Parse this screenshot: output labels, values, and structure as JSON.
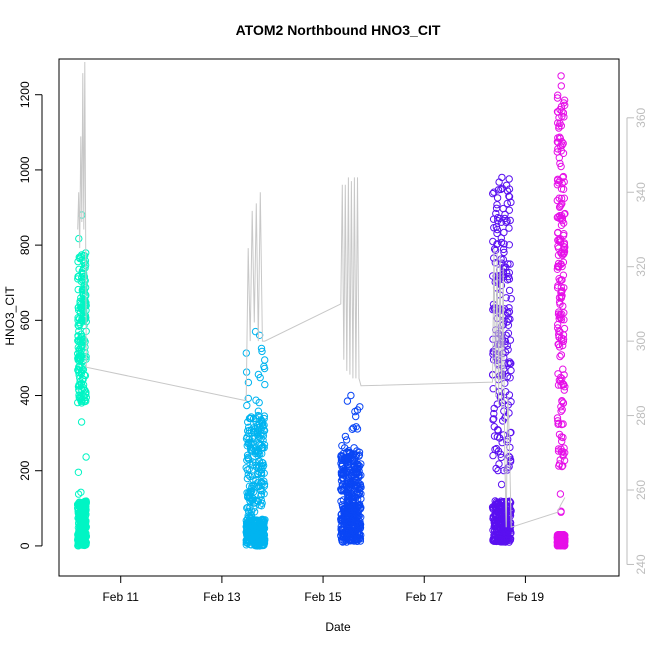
{
  "chart_data": {
    "type": "scatter",
    "title": "ATOM2 Northbound HNO3_CIT",
    "xlabel": "Date",
    "ylabel": "HNO3_CIT",
    "x_unit": "days in February",
    "xlim": [
      9.78,
      20.85
    ],
    "ylim": [
      -80,
      1295
    ],
    "x_ticks": [
      11,
      13,
      15,
      17,
      19
    ],
    "x_tick_labels": [
      "Feb 11",
      "Feb 13",
      "Feb 15",
      "Feb 17",
      "Feb 19"
    ],
    "y_ticks": [
      0,
      200,
      400,
      600,
      800,
      1000,
      1200
    ],
    "y_tick_labels": [
      "0",
      "200",
      "400",
      "600",
      "800",
      "1000",
      "1200"
    ],
    "y2lim": [
      236.9,
      375.8
    ],
    "y2_ticks": [
      240,
      260,
      280,
      300,
      320,
      340,
      360
    ],
    "y2_tick_labels": [
      "240",
      "260",
      "280",
      "300",
      "320",
      "340",
      "360"
    ],
    "grid": false,
    "legend": "none",
    "colors": {
      "series": [
        "#00f5c4",
        "#00b4f0",
        "#0a46f5",
        "#5a10f0",
        "#e610e8"
      ],
      "line": "#c8c8c8"
    },
    "series": [
      {
        "x_range": [
          10.15,
          10.32
        ],
        "core": [
          0,
          120
        ],
        "upper": [
          380,
          780
        ],
        "max": 880
      },
      {
        "x_range": [
          13.48,
          13.85
        ],
        "core": [
          0,
          70
        ],
        "upper": [
          70,
          350
        ],
        "max": 570
      },
      {
        "x_range": [
          15.35,
          15.75
        ],
        "core": [
          10,
          110
        ],
        "upper": [
          110,
          250
        ],
        "max": 400
      },
      {
        "x_range": [
          18.35,
          18.72
        ],
        "core": [
          10,
          120
        ],
        "upper": [
          200,
          960
        ],
        "max": 980
      },
      {
        "x_range": [
          19.63,
          19.78
        ],
        "core": [
          0,
          30
        ],
        "upper": [
          200,
          1200
        ],
        "max": 1250
      }
    ],
    "line_series": {
      "axis": "right",
      "x": [
        10.15,
        10.17,
        10.19,
        10.21,
        10.23,
        10.25,
        10.27,
        10.29,
        10.32,
        13.48,
        13.52,
        13.56,
        13.6,
        13.64,
        13.68,
        13.72,
        13.76,
        13.8,
        13.85,
        15.35,
        15.38,
        15.41,
        15.44,
        15.47,
        15.5,
        15.53,
        15.56,
        15.59,
        15.62,
        15.65,
        15.68,
        15.71,
        15.75,
        18.35,
        18.38,
        18.41,
        18.44,
        18.47,
        18.5,
        18.53,
        18.56,
        18.59,
        18.62,
        18.65,
        18.68,
        18.72,
        19.63,
        19.7,
        19.78
      ],
      "y": [
        330,
        340,
        325,
        355,
        332,
        372,
        330,
        375,
        293,
        284,
        325,
        300,
        335,
        305,
        337,
        300,
        340,
        300,
        300,
        310,
        342,
        295,
        342,
        292,
        344,
        291,
        343,
        290,
        344,
        290,
        344,
        290,
        288,
        289,
        325,
        285,
        324,
        283,
        323,
        282,
        320,
        270,
        250,
        285,
        275,
        250,
        254,
        256,
        258
      ]
    }
  }
}
